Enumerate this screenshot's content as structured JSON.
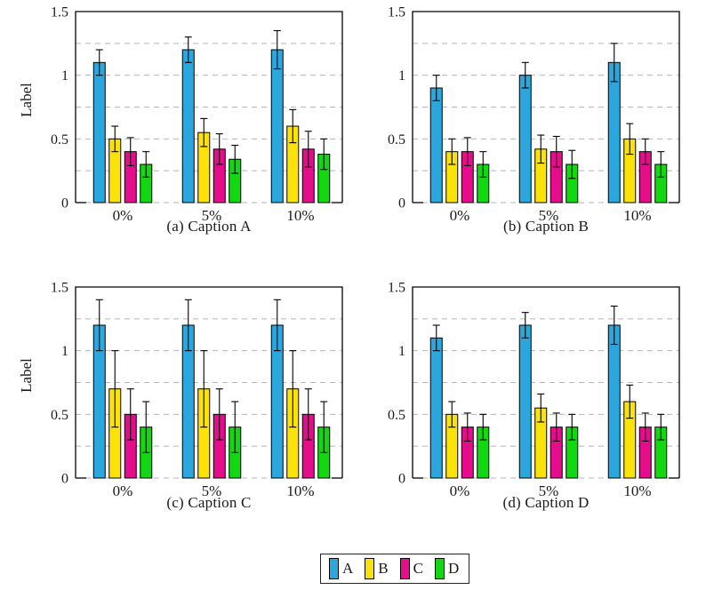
{
  "legend": {
    "entries": [
      {
        "label": "A",
        "color": "#2BA7DE"
      },
      {
        "label": "B",
        "color": "#FBE30A"
      },
      {
        "label": "C",
        "color": "#E60D8D"
      },
      {
        "label": "D",
        "color": "#12D812"
      }
    ]
  },
  "style": {
    "grid_color": "#b5b5b5",
    "axis_color": "#000000",
    "bar_stroke": "#000000"
  },
  "chart_data": [
    {
      "id": "a",
      "type": "bar",
      "caption": "(a) Caption A",
      "ylabel": "Label",
      "categories": [
        "0%",
        "5%",
        "10%"
      ],
      "ylim": [
        0,
        1.5
      ],
      "yticks": [
        0,
        0.5,
        1,
        1.5
      ],
      "ytick_labels": [
        "0",
        "0.5",
        "1",
        "1.5"
      ],
      "gridlines": [
        0.25,
        0.5,
        0.75,
        1,
        1.25
      ],
      "grid_style": "dashed",
      "error_bars": true,
      "series": [
        {
          "name": "A",
          "values": [
            1.1,
            1.2,
            1.2
          ],
          "errors": [
            0.1,
            0.1,
            0.15
          ]
        },
        {
          "name": "B",
          "values": [
            0.5,
            0.55,
            0.6
          ],
          "errors": [
            0.1,
            0.11,
            0.13
          ]
        },
        {
          "name": "C",
          "values": [
            0.4,
            0.42,
            0.42
          ],
          "errors": [
            0.11,
            0.12,
            0.14
          ]
        },
        {
          "name": "D",
          "values": [
            0.3,
            0.34,
            0.38
          ],
          "errors": [
            0.1,
            0.11,
            0.12
          ]
        }
      ]
    },
    {
      "id": "b",
      "type": "bar",
      "caption": "(b) Caption B",
      "ylabel": "",
      "categories": [
        "0%",
        "5%",
        "10%"
      ],
      "ylim": [
        0,
        1.5
      ],
      "yticks": [
        0,
        0.5,
        1,
        1.5
      ],
      "ytick_labels": [
        "0",
        "0.5",
        "1",
        "1.5"
      ],
      "gridlines": [
        0.25,
        0.5,
        0.75,
        1,
        1.25
      ],
      "grid_style": "dashed",
      "error_bars": true,
      "series": [
        {
          "name": "A",
          "values": [
            0.9,
            1.0,
            1.1
          ],
          "errors": [
            0.1,
            0.1,
            0.15
          ]
        },
        {
          "name": "B",
          "values": [
            0.4,
            0.42,
            0.5
          ],
          "errors": [
            0.1,
            0.11,
            0.12
          ]
        },
        {
          "name": "C",
          "values": [
            0.4,
            0.4,
            0.4
          ],
          "errors": [
            0.11,
            0.12,
            0.1
          ]
        },
        {
          "name": "D",
          "values": [
            0.3,
            0.3,
            0.3
          ],
          "errors": [
            0.1,
            0.11,
            0.1
          ]
        }
      ]
    },
    {
      "id": "c",
      "type": "bar",
      "caption": "(c) Caption C",
      "ylabel": "Label",
      "categories": [
        "0%",
        "5%",
        "10%"
      ],
      "ylim": [
        0,
        1.5
      ],
      "yticks": [
        0,
        0.5,
        1,
        1.5
      ],
      "ytick_labels": [
        "0",
        "0.5",
        "1",
        "1.5"
      ],
      "gridlines": [
        0.25,
        0.5,
        0.75,
        1,
        1.25
      ],
      "grid_style": "dashed",
      "error_bars": true,
      "series": [
        {
          "name": "A",
          "values": [
            1.2,
            1.2,
            1.2
          ],
          "errors": [
            0.2,
            0.2,
            0.2
          ]
        },
        {
          "name": "B",
          "values": [
            0.7,
            0.7,
            0.7
          ],
          "errors": [
            0.3,
            0.3,
            0.3
          ]
        },
        {
          "name": "C",
          "values": [
            0.5,
            0.5,
            0.5
          ],
          "errors": [
            0.2,
            0.2,
            0.2
          ]
        },
        {
          "name": "D",
          "values": [
            0.4,
            0.4,
            0.4
          ],
          "errors": [
            0.2,
            0.2,
            0.2
          ]
        }
      ]
    },
    {
      "id": "d",
      "type": "bar",
      "caption": "(d) Caption D",
      "ylabel": "",
      "categories": [
        "0%",
        "5%",
        "10%"
      ],
      "ylim": [
        0,
        1.5
      ],
      "yticks": [
        0,
        0.5,
        1,
        1.5
      ],
      "ytick_labels": [
        "0",
        "0.5",
        "1",
        "1.5"
      ],
      "gridlines": [
        0.25,
        0.5,
        0.75,
        1,
        1.25
      ],
      "grid_style": "dashed",
      "error_bars": true,
      "series": [
        {
          "name": "A",
          "values": [
            1.1,
            1.2,
            1.2
          ],
          "errors": [
            0.1,
            0.1,
            0.15
          ]
        },
        {
          "name": "B",
          "values": [
            0.5,
            0.55,
            0.6
          ],
          "errors": [
            0.1,
            0.11,
            0.13
          ]
        },
        {
          "name": "C",
          "values": [
            0.4,
            0.4,
            0.4
          ],
          "errors": [
            0.11,
            0.11,
            0.11
          ]
        },
        {
          "name": "D",
          "values": [
            0.4,
            0.4,
            0.4
          ],
          "errors": [
            0.1,
            0.1,
            0.1
          ]
        }
      ]
    }
  ]
}
